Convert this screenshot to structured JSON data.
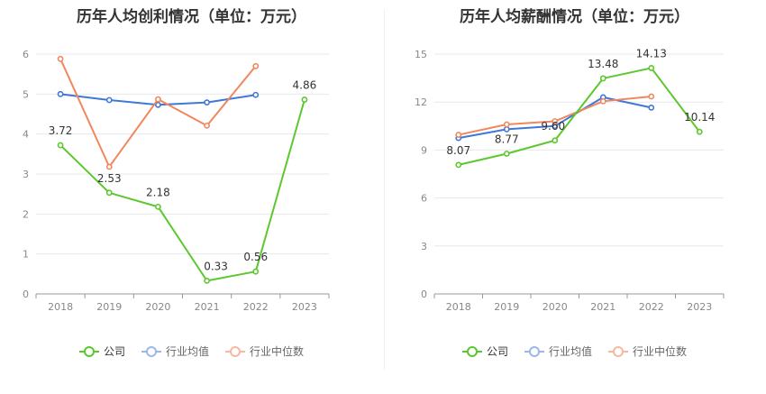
{
  "chart_data": [
    {
      "type": "line",
      "title": "历年人均创利情况（单位：万元）",
      "categories": [
        "2018",
        "2019",
        "2020",
        "2021",
        "2022",
        "2023"
      ],
      "ylim": [
        0,
        6
      ],
      "yticks": [
        "0",
        "1",
        "2",
        "3",
        "4",
        "5",
        "6"
      ],
      "grid": true,
      "legend_position": "bottom",
      "series": [
        {
          "name": "公司",
          "color": "#5cc82e",
          "values": [
            3.72,
            2.53,
            2.18,
            0.33,
            0.56,
            4.86
          ],
          "labels": [
            "3.72",
            "2.53",
            "2.18",
            "0.33",
            "0.56",
            "4.86"
          ]
        },
        {
          "name": "行业均值",
          "color": "#3f78d8",
          "values": [
            5.0,
            4.85,
            4.73,
            4.79,
            4.98,
            null
          ]
        },
        {
          "name": "行业中位数",
          "color": "#f0875d",
          "values": [
            5.88,
            3.18,
            4.87,
            4.21,
            5.7,
            null
          ]
        }
      ]
    },
    {
      "type": "line",
      "title": "历年人均薪酬情况（单位：万元）",
      "categories": [
        "2018",
        "2019",
        "2020",
        "2021",
        "2022",
        "2023"
      ],
      "ylim": [
        0,
        15
      ],
      "yticks": [
        "0",
        "3",
        "6",
        "9",
        "12",
        "15"
      ],
      "grid": true,
      "legend_position": "bottom",
      "series": [
        {
          "name": "公司",
          "color": "#5cc82e",
          "values": [
            8.07,
            8.77,
            9.6,
            13.48,
            14.13,
            10.14
          ],
          "labels": [
            "8.07",
            "8.77",
            "9.60",
            "13.48",
            "14.13",
            "10.14"
          ]
        },
        {
          "name": "行业均值",
          "color": "#3f78d8",
          "values": [
            9.75,
            10.3,
            10.5,
            12.3,
            11.65,
            null
          ]
        },
        {
          "name": "行业中位数",
          "color": "#f0875d",
          "values": [
            9.95,
            10.6,
            10.8,
            12.05,
            12.35,
            null
          ]
        }
      ]
    }
  ]
}
